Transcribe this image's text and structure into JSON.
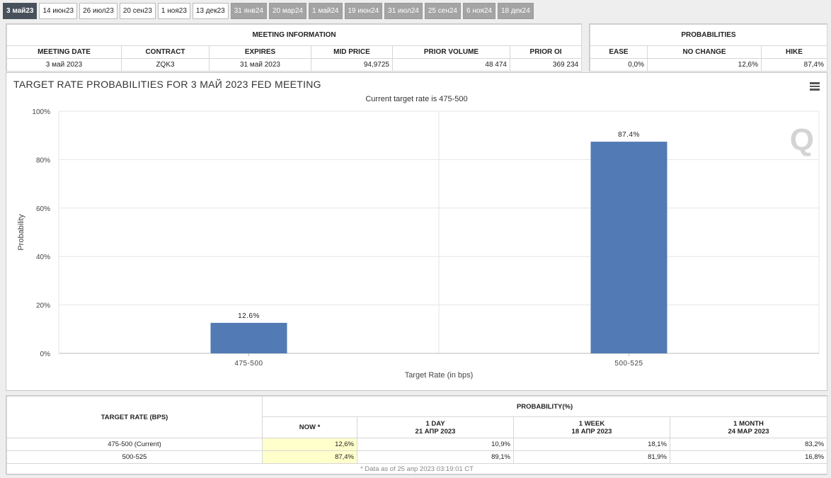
{
  "tabs": [
    {
      "label": "3 май23",
      "state": "active"
    },
    {
      "label": "14 июн23",
      "state": "normal"
    },
    {
      "label": "26 июл23",
      "state": "normal"
    },
    {
      "label": "20 сен23",
      "state": "normal"
    },
    {
      "label": "1 ноя23",
      "state": "normal"
    },
    {
      "label": "13 дек23",
      "state": "normal"
    },
    {
      "label": "31 янв24",
      "state": "future"
    },
    {
      "label": "20 мар24",
      "state": "future"
    },
    {
      "label": "1 май24",
      "state": "future"
    },
    {
      "label": "19 июн24",
      "state": "future"
    },
    {
      "label": "31 июл24",
      "state": "future"
    },
    {
      "label": "25 сен24",
      "state": "future"
    },
    {
      "label": "6 ноя24",
      "state": "future"
    },
    {
      "label": "18 дек24",
      "state": "future"
    }
  ],
  "meeting_info": {
    "title": "MEETING INFORMATION",
    "headers": [
      "MEETING DATE",
      "CONTRACT",
      "EXPIRES",
      "MID PRICE",
      "PRIOR VOLUME",
      "PRIOR OI"
    ],
    "values": [
      "3 май 2023",
      "ZQK3",
      "31 май 2023",
      "94,9725",
      "48 474",
      "369 234"
    ]
  },
  "probabilities": {
    "title": "PROBABILITIES",
    "headers": [
      "EASE",
      "NO CHANGE",
      "HIKE"
    ],
    "values": [
      "0,0%",
      "12,6%",
      "87,4%"
    ]
  },
  "chart": {
    "title": "TARGET RATE PROBABILITIES FOR 3 МАЙ 2023 FED MEETING",
    "subtitle": "Current target rate is 475-500",
    "logo": "Q",
    "bar_color": "#527ab4"
  },
  "chart_data": {
    "type": "bar",
    "categories": [
      "475-500",
      "500-525"
    ],
    "values": [
      12.6,
      87.4
    ],
    "data_labels": [
      "12.6%",
      "87.4%"
    ],
    "xlabel": "Target Rate (in bps)",
    "ylabel": "Probability",
    "ylim": [
      0,
      100
    ],
    "yticks": [
      0,
      20,
      40,
      60,
      80,
      100
    ],
    "ytick_labels": [
      "0%",
      "20%",
      "40%",
      "60%",
      "80%",
      "100%"
    ],
    "grid": true,
    "legend": "none"
  },
  "prob_table": {
    "col_target": "TARGET RATE (BPS)",
    "col_group": "PROBABILITY(%)",
    "subcols": [
      {
        "line1": "NOW *",
        "line2": ""
      },
      {
        "line1": "1 DAY",
        "line2": "21 АПР 2023"
      },
      {
        "line1": "1 WEEK",
        "line2": "18 АПР 2023"
      },
      {
        "line1": "1 MONTH",
        "line2": "24 МАР 2023"
      }
    ],
    "rows": [
      {
        "rate": "475-500 (Current)",
        "values": [
          "12,6%",
          "10,9%",
          "18,1%",
          "83,2%"
        ]
      },
      {
        "rate": "500-525",
        "values": [
          "87,4%",
          "89,1%",
          "81,9%",
          "16,8%"
        ]
      }
    ],
    "footnote": "* Data as of 25 апр 2023 03:19:01 CT"
  }
}
